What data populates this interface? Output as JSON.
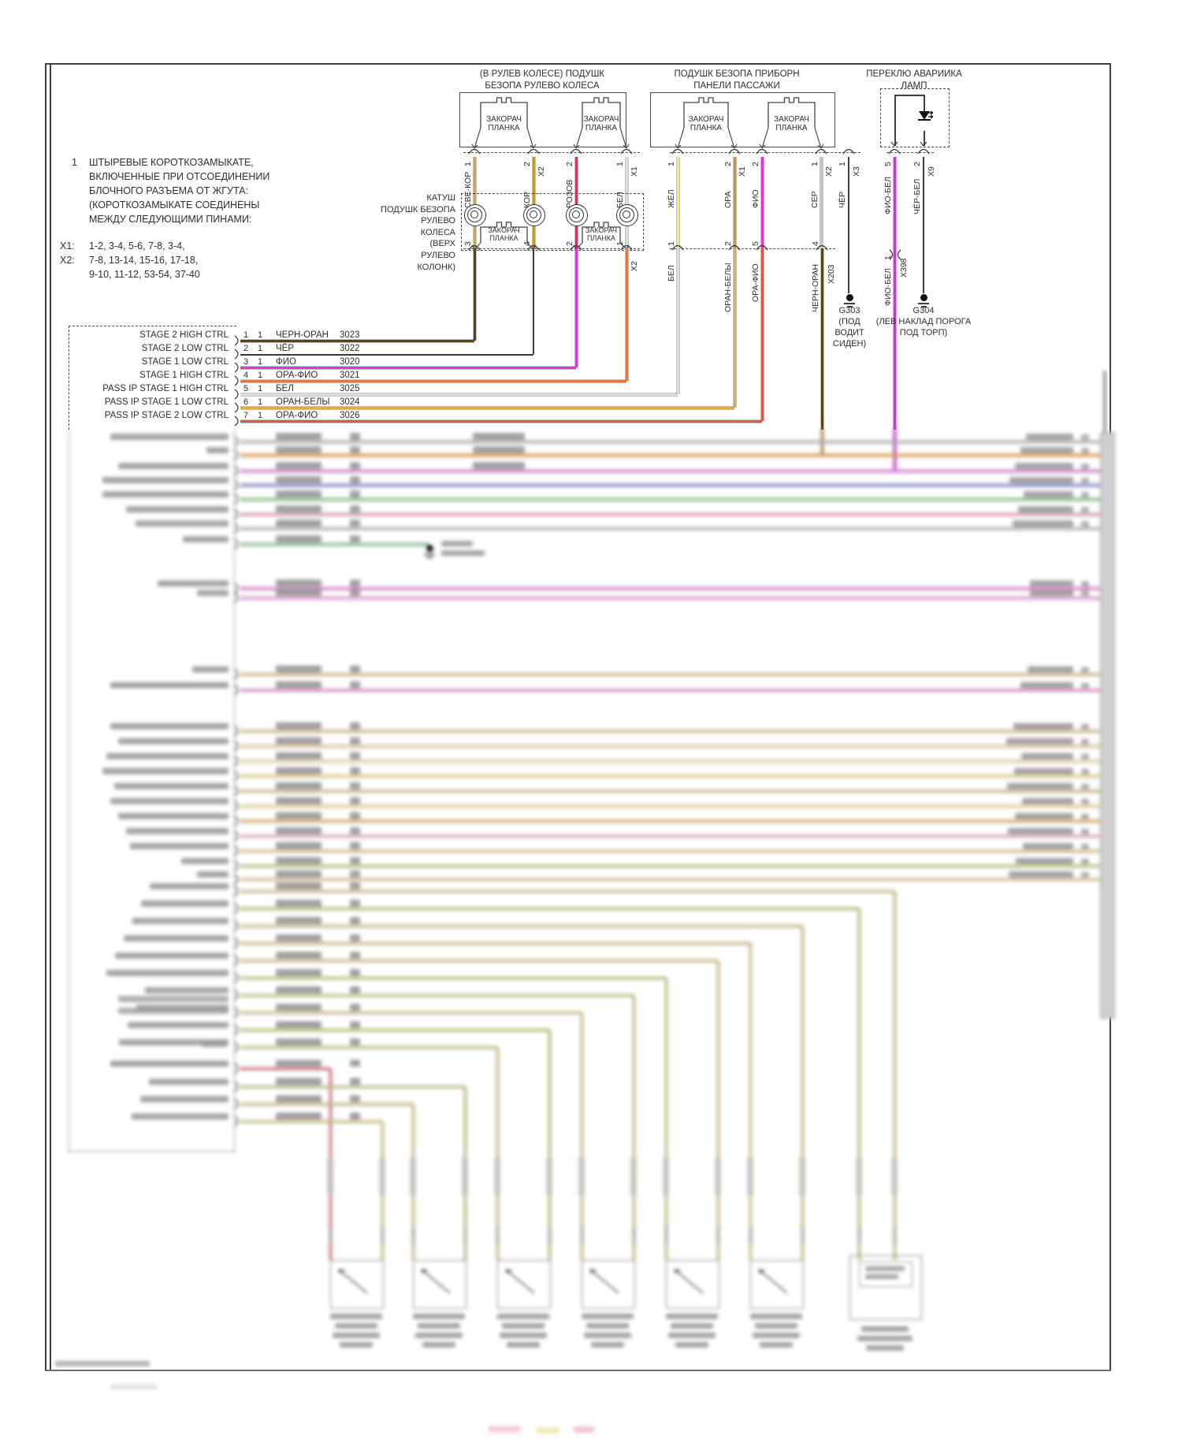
{
  "note": {
    "num": "1",
    "lines": [
      "ШТЫРЕВЫЕ КОРОТКОЗАМЫКАТЕ,",
      "ВКЛЮЧЕННЫЕ ПРИ ОТСОЕДИНЕНИИ",
      "БЛОЧНОГО РАЗЪЕМА ОТ ЖГУТА:",
      "(КОРОТКОЗАМЫКАТЕ СОЕДИНЕНЫ",
      "МЕЖДУ СЛЕДУЮЩИМИ ПИНАМИ:"
    ],
    "x1_key": "X1:",
    "x1_val": "1-2, 3-4, 5-6, 7-8, 3-4,",
    "x2_key": "X2:",
    "x2_val": "7-8, 13-14, 15-16, 17-18,",
    "x2_val2": "9-10, 11-12, 53-54, 37-40"
  },
  "headers": {
    "steering": [
      "(В РУЛЕВ КОЛЕСЕ) ПОДУШК",
      "БЕЗОПА РУЛЕВО КОЛЕСА"
    ],
    "passenger": [
      "ПОДУШК БЕЗОПА ПРИБОРН",
      "ПАНЕЛИ ПАССАЖИ"
    ],
    "hazard": [
      "ПЕРЕКЛЮ АВАРИИКА",
      "ЛАМП"
    ]
  },
  "shorting_bar": [
    "ЗАКОРАЧ",
    "ПЛАНКА"
  ],
  "clockspring_label": [
    "КАТУШ",
    "ПОДУШК БЕЗОПА",
    "РУЛЕВО",
    "КОЛЕСА",
    "(ВЕРХ",
    "РУЛЕВО",
    "КОЛОНК)"
  ],
  "top_pins": [
    {
      "pin": "1",
      "label": "СВЕ-КОР",
      "color": "#d2ab32"
    },
    {
      "pin": "2",
      "label": "КОР",
      "conn": "X2",
      "color": "#c49a28"
    },
    {
      "pin": "2",
      "label": "РОЗОВ",
      "color": "#d6336c"
    },
    {
      "pin": "1",
      "label": "БЕЛ",
      "conn": "X1",
      "color": "#dcdcdc"
    },
    {
      "pin": "1",
      "label": "ЖЁЛ",
      "color": "#f2ee6a"
    },
    {
      "pin": "2",
      "label": "ОРА",
      "conn": "X1",
      "color": "#e0931c"
    },
    {
      "pin": "2",
      "label": "ФИО",
      "color": "#e332e3"
    },
    {
      "pin": "1",
      "label": "СЕР",
      "conn": "X2",
      "color": "#c6c6c6"
    },
    {
      "pin": "1",
      "label": "ЧЁР",
      "conn": "X3",
      "color": "#404040"
    },
    {
      "pin": "5",
      "label": "ФИО-БЕЛ",
      "color": "#d633d6"
    },
    {
      "pin": "2",
      "label": "ЧЁР-БЕЛ",
      "conn": "X9",
      "color": "#404040"
    }
  ],
  "lower_a_pins": [
    {
      "pin": "3",
      "below_color": "#5a4216"
    },
    {
      "pin": "4",
      "below_color": "#3a3a3a"
    },
    {
      "pin": "2",
      "below_color": "#e332e3"
    },
    {
      "pin": "1",
      "conn": "X2",
      "below_color": "#e0784a"
    }
  ],
  "lower_b_pins": [
    {
      "pin": "1",
      "label": "БЕЛ",
      "below_color": "#dcdcdc"
    },
    {
      "pin": "2",
      "label": "ОРАН-БЕЛЫ",
      "below_color": "#e8a83c"
    },
    {
      "pin": "5",
      "label": "ОРА-ФИО",
      "below_color": "#e05545"
    },
    {
      "pin": "4",
      "label": "ЧЕРН-ОРАН",
      "conn": "X203",
      "below_color": "#5a4216"
    }
  ],
  "splice": {
    "pin": "1",
    "conn": "X398",
    "label": "ФИО-БЕЛ"
  },
  "grounds": [
    {
      "id": "G303",
      "location": [
        "(ПОД",
        "ВОДИТ",
        "СИДЕН)"
      ]
    },
    {
      "id": "G304",
      "location": [
        "(ЛЕВ НАКЛАД ПОРОГА",
        "ПОД ТОРП)"
      ]
    }
  ],
  "module_rows": [
    {
      "pin": "1",
      "qty": "1",
      "wire": "ЧЕРН-ОРАН",
      "circuit": "3023",
      "label": "STAGE 2 HIGH CTRL",
      "color": "#5a4216"
    },
    {
      "pin": "2",
      "qty": "1",
      "wire": "ЧЁР",
      "circuit": "3022",
      "label": "STAGE 2 LOW CTRL",
      "color": "#3a3a3a"
    },
    {
      "pin": "3",
      "qty": "1",
      "wire": "ФИО",
      "circuit": "3020",
      "label": "STAGE 1 LOW CTRL",
      "color": "#e332e3"
    },
    {
      "pin": "4",
      "qty": "1",
      "wire": "ОРА-ФИО",
      "circuit": "3021",
      "label": "STAGE 1 HIGH CTRL",
      "color": "#e0784a"
    },
    {
      "pin": "5",
      "qty": "1",
      "wire": "БЕЛ",
      "circuit": "3025",
      "label": "PASS IP STAGE 1 HIGH CTRL",
      "color": "#dcdcdc"
    },
    {
      "pin": "6",
      "qty": "1",
      "wire": "ОРАН-БЕЛЫ",
      "circuit": "3024",
      "label": "PASS IP STAGE 1 LOW CTRL",
      "color": "#e8a83c"
    },
    {
      "pin": "7",
      "qty": "1",
      "wire": "ОРА-ФИО",
      "circuit": "3026",
      "label": "PASS IP STAGE 2 LOW CTRL",
      "color": "#e05545"
    }
  ],
  "blur_palette": {
    "g1": [
      "#bdbdbd",
      "#f0a24a",
      "#ee7fe0",
      "#8893d6",
      "#8fca8f",
      "#f2a0b0",
      "#c0c0c0",
      "#8fca8f"
    ],
    "g2": [
      "#ea85dc",
      "#f0a0e0"
    ],
    "g3": [
      "#d9c98c",
      "#f095d8",
      "#dbc98e",
      "#e6d89c",
      "#efe5ad",
      "#e9e092",
      "#d8c88a",
      "#eee4a0",
      "#e6b873",
      "#f2b6c4",
      "#dfd093",
      "#cbd288",
      "#e2d59a"
    ],
    "cascade": [
      "#d8cf92",
      "#c9d07e",
      "#d8cf92",
      "#ddd296",
      "#d8cf92",
      "#cfd28a",
      "#d8cf92",
      "#ddd296",
      "#c9d07e",
      "#d8cf92",
      "#e87a8a",
      "#cfd28a",
      "#d8cf92",
      "#ddd296"
    ],
    "connector_bar": "#cfcfcf"
  }
}
